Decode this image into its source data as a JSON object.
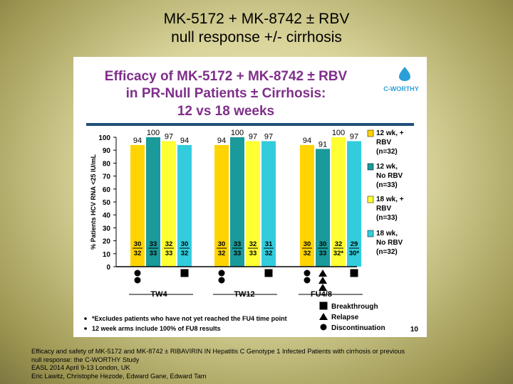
{
  "slide": {
    "title_line1": "MK-5172 + MK-8742 ± RBV",
    "title_line2": "null response +/- cirrhosis"
  },
  "panel": {
    "title_lines": [
      "Efficacy of MK-5172 + MK-8742 ± RBV",
      "in PR-Null Patients ± Cirrhosis:",
      "12 vs 18 weeks"
    ],
    "logo_text": "C-WORTHY",
    "page_number": "10",
    "colors": {
      "title": "#7f2f8a",
      "rule": "#1f4e79",
      "logo": "#2b9fd8"
    }
  },
  "chart_data": {
    "type": "bar",
    "ylabel": "% Patients HCV RNA <25 IU/mL",
    "ylim": [
      0,
      100
    ],
    "yticks": [
      0,
      10,
      20,
      30,
      40,
      50,
      60,
      70,
      80,
      90,
      100
    ],
    "categories": [
      "TW4",
      "TW12",
      "FU4/8"
    ],
    "series": [
      {
        "name": "12 wk, + RBV (n=32)",
        "color": "#ffd400",
        "values": [
          94,
          94,
          94
        ],
        "fractions": [
          [
            "30",
            "32"
          ],
          [
            "30",
            "32"
          ],
          [
            "30",
            "32"
          ]
        ]
      },
      {
        "name": "12 wk, No RBV (n=33)",
        "color": "#1a9a9a",
        "values": [
          100,
          100,
          91
        ],
        "fractions": [
          [
            "33",
            "33"
          ],
          [
            "33",
            "33"
          ],
          [
            "30",
            "33"
          ]
        ]
      },
      {
        "name": "18 wk, + RBV (n=33)",
        "color": "#ffff33",
        "values": [
          97,
          97,
          100
        ],
        "fractions": [
          [
            "32",
            "33"
          ],
          [
            "32",
            "33"
          ],
          [
            "32",
            "32*"
          ]
        ]
      },
      {
        "name": "18 wk, No RBV (n=32)",
        "color": "#33ccdd",
        "values": [
          94,
          97,
          97
        ],
        "fractions": [
          [
            "30",
            "32"
          ],
          [
            "31",
            "32"
          ],
          [
            "29",
            "30*"
          ]
        ]
      }
    ],
    "legend_lines": [
      [
        "12 wk, +",
        "RBV",
        "(n=32)"
      ],
      [
        "12 wk,",
        "No RBV",
        "(n=33)"
      ],
      [
        "18 wk, +",
        "RBV",
        "(n=33)"
      ],
      [
        "18 wk,",
        "No RBV",
        "(n=32)"
      ]
    ],
    "legend_position": "right",
    "grid": false,
    "outcomes": [
      {
        "category": "TW4",
        "series": 0,
        "marks": [
          "discontinuation",
          "discontinuation"
        ]
      },
      {
        "category": "TW4",
        "series": 3,
        "marks": [
          "breakthrough"
        ]
      },
      {
        "category": "TW12",
        "series": 0,
        "marks": [
          "discontinuation",
          "discontinuation"
        ]
      },
      {
        "category": "TW12",
        "series": 3,
        "marks": [
          "breakthrough"
        ]
      },
      {
        "category": "FU4/8",
        "series": 0,
        "marks": [
          "discontinuation",
          "discontinuation"
        ]
      },
      {
        "category": "FU4/8",
        "series": 1,
        "marks": [
          "relapse",
          "relapse",
          "relapse"
        ]
      },
      {
        "category": "FU4/8",
        "series": 3,
        "marks": [
          "breakthrough"
        ]
      }
    ],
    "symbol_legend": [
      "Breakthrough",
      "Relapse",
      "Discontinuation"
    ],
    "footnotes": [
      "*Excludes patients who have not yet reached the FU4 time point",
      "12 week arms include 100% of FU8 results"
    ]
  },
  "caption": {
    "lines": [
      "Efficacy and safety of MK-5172 and MK-8742 ± RIBAVIRIN IN Hepatitis C Genotype 1 Infected Patients with cirrhosis or previous",
      "null response: the C-WORTHY Study",
      "EASL 2014 April 9-13 London, UK",
      "Eric Lawitz, Christophe Hezode, Edward Gane, Edward Tam"
    ]
  }
}
